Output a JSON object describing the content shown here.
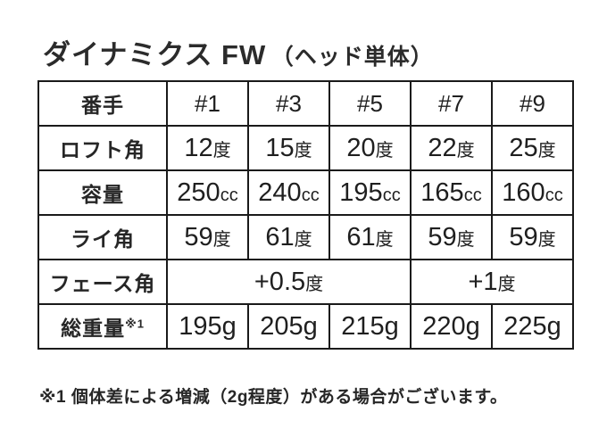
{
  "page": {
    "background": "#ffffff",
    "text_color": "#222222",
    "border_color": "#1a1a1a"
  },
  "title": {
    "main": "ダイナミクス FW",
    "sub": "（ヘッド単体）"
  },
  "table": {
    "rows": [
      {
        "label": "番手",
        "cells": [
          {
            "text": "#1"
          },
          {
            "text": "#3"
          },
          {
            "text": "#5"
          },
          {
            "text": "#7"
          },
          {
            "text": "#9"
          }
        ]
      },
      {
        "label": "ロフト角",
        "cells": [
          {
            "text": "12",
            "unit": "度"
          },
          {
            "text": "15",
            "unit": "度"
          },
          {
            "text": "20",
            "unit": "度"
          },
          {
            "text": "22",
            "unit": "度"
          },
          {
            "text": "25",
            "unit": "度"
          }
        ]
      },
      {
        "label": "容量",
        "cells": [
          {
            "text": "250",
            "unit": "cc"
          },
          {
            "text": "240",
            "unit": "cc"
          },
          {
            "text": "195",
            "unit": "cc"
          },
          {
            "text": "165",
            "unit": "cc"
          },
          {
            "text": "160",
            "unit": "cc"
          }
        ]
      },
      {
        "label": "ライ角",
        "cells": [
          {
            "text": "59",
            "unit": "度"
          },
          {
            "text": "61",
            "unit": "度"
          },
          {
            "text": "61",
            "unit": "度"
          },
          {
            "text": "59",
            "unit": "度"
          },
          {
            "text": "59",
            "unit": "度"
          }
        ]
      },
      {
        "label": "フェース角",
        "cells": [
          {
            "text": "+0.5",
            "unit": "度",
            "colspan": 3
          },
          {
            "text": "+1",
            "unit": "度",
            "colspan": 2
          }
        ]
      },
      {
        "label": "総重量",
        "label_sup": "※1",
        "cells": [
          {
            "text": "195g"
          },
          {
            "text": "205g"
          },
          {
            "text": "215g"
          },
          {
            "text": "220g"
          },
          {
            "text": "225g"
          }
        ]
      }
    ]
  },
  "footnote": "※1 個体差による増減（2g程度）がある場合がございます。"
}
